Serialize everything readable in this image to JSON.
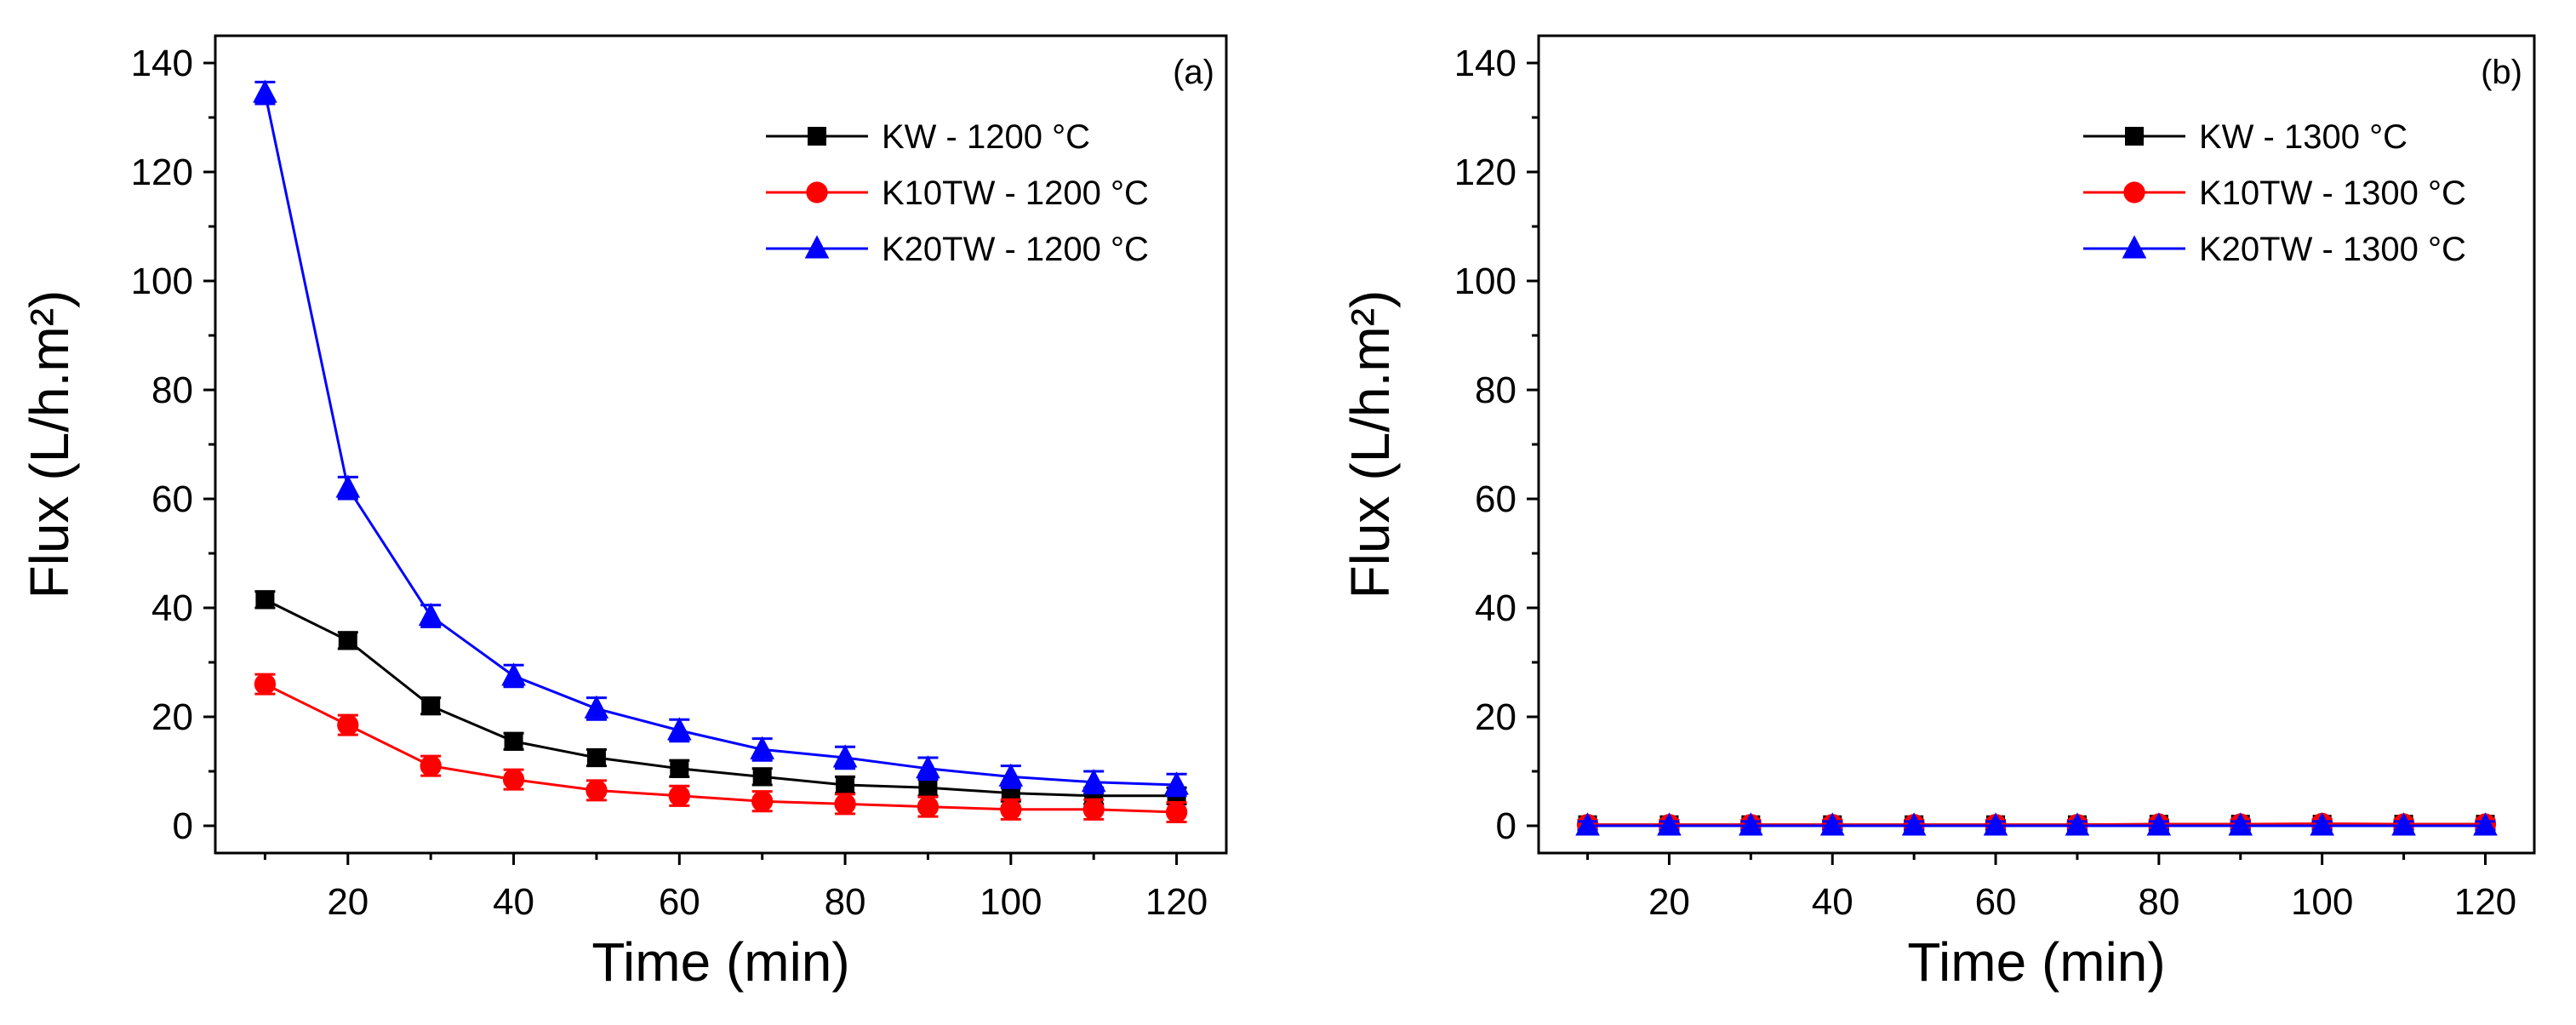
{
  "chart_data": [
    {
      "type": "line",
      "panel_label": "(a)",
      "xlabel": "Time (min)",
      "ylabel": "Flux (L/h.m²)",
      "xlim": [
        4,
        126
      ],
      "ylim": [
        -5,
        145
      ],
      "xticks": [
        20,
        40,
        60,
        80,
        100,
        120
      ],
      "yticks": [
        0,
        20,
        40,
        60,
        80,
        100,
        120,
        140
      ],
      "legend_position": "top-right",
      "x": [
        10,
        20,
        30,
        40,
        50,
        60,
        70,
        80,
        90,
        100,
        110,
        120
      ],
      "series": [
        {
          "name": "KW - 1200 °C",
          "color": "#000000",
          "marker": "square",
          "values": [
            41.5,
            34,
            22,
            15.5,
            12.5,
            10.5,
            9,
            7.5,
            7,
            6,
            5.5,
            5.5
          ],
          "errors": [
            1.5,
            1.5,
            1.5,
            1.5,
            1.5,
            1.5,
            1.5,
            1.5,
            1.5,
            1.5,
            1.5,
            1.5
          ]
        },
        {
          "name": "K10TW - 1200 °C",
          "color": "#ff0000",
          "marker": "circle",
          "values": [
            26,
            18.5,
            11,
            8.5,
            6.5,
            5.5,
            4.5,
            4,
            3.5,
            3,
            3,
            2.5
          ],
          "errors": [
            1.8,
            1.8,
            1.8,
            1.8,
            1.8,
            1.8,
            1.8,
            1.8,
            1.8,
            1.8,
            1.8,
            1.8
          ]
        },
        {
          "name": "K20TW - 1200 °C",
          "color": "#0000ff",
          "marker": "triangle",
          "values": [
            134.5,
            62,
            38.5,
            27.5,
            21.5,
            17.5,
            14,
            12.5,
            10.5,
            9,
            8,
            7.5
          ],
          "errors": [
            2,
            2,
            2,
            2,
            2,
            2,
            2,
            2,
            2,
            2,
            2,
            2
          ]
        }
      ]
    },
    {
      "type": "line",
      "panel_label": "(b)",
      "xlabel": "Time (min)",
      "ylabel": "Flux (L/h.m²)",
      "xlim": [
        4,
        126
      ],
      "ylim": [
        -5,
        145
      ],
      "xticks": [
        20,
        40,
        60,
        80,
        100,
        120
      ],
      "yticks": [
        0,
        20,
        40,
        60,
        80,
        100,
        120,
        140
      ],
      "legend_position": "top-right",
      "x": [
        10,
        20,
        30,
        40,
        50,
        60,
        70,
        80,
        90,
        100,
        110,
        120
      ],
      "series": [
        {
          "name": "KW - 1300 °C",
          "color": "#000000",
          "marker": "square",
          "values": [
            0.2,
            0.2,
            0.2,
            0.2,
            0.2,
            0.2,
            0.2,
            0.3,
            0.3,
            0.3,
            0.3,
            0.3
          ],
          "errors": [
            0.8,
            0.8,
            0.8,
            0.8,
            0.8,
            0.8,
            0.8,
            0.8,
            0.8,
            0.8,
            0.8,
            0.8
          ]
        },
        {
          "name": "K10TW - 1300 °C",
          "color": "#ff0000",
          "marker": "circle",
          "values": [
            0.2,
            0.2,
            0.2,
            0.2,
            0.2,
            0.2,
            0.2,
            0.3,
            0.3,
            0.4,
            0.3,
            0.3
          ],
          "errors": [
            0.8,
            0.8,
            0.8,
            0.8,
            0.8,
            0.8,
            0.8,
            0.8,
            0.8,
            0.8,
            0.8,
            0.8
          ]
        },
        {
          "name": "K20TW - 1300 °C",
          "color": "#0000ff",
          "marker": "triangle",
          "values": [
            0,
            0,
            0,
            0,
            0,
            0,
            0,
            0,
            0,
            0,
            0,
            0
          ],
          "errors": [
            0.8,
            0.8,
            0.8,
            0.8,
            0.8,
            0.8,
            0.8,
            0.8,
            0.8,
            0.8,
            0.8,
            0.8
          ]
        }
      ]
    }
  ]
}
